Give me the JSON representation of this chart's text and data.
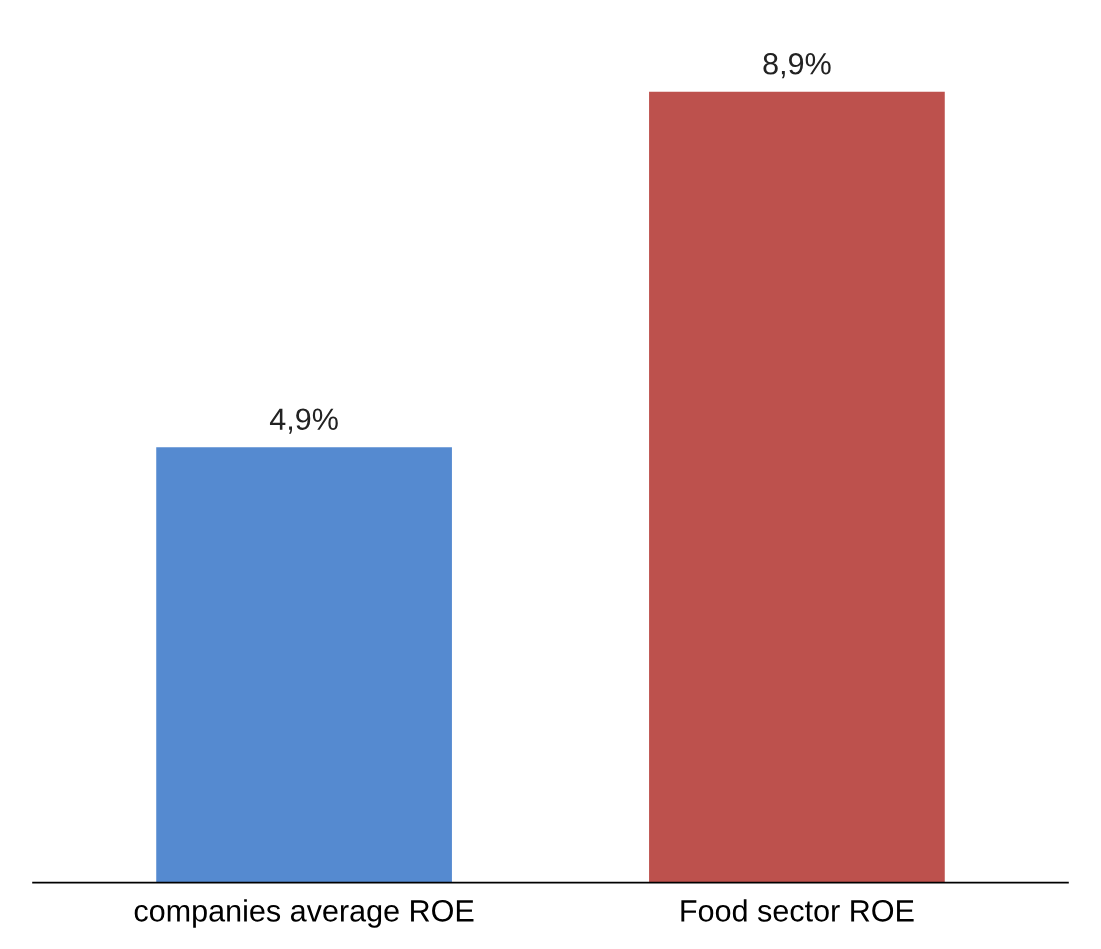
{
  "chart_data": {
    "type": "bar",
    "categories": [
      "companies average ROE",
      "Food sector ROE"
    ],
    "values": [
      4.9,
      8.9
    ],
    "colors": [
      "#558ad0",
      "#bd514d"
    ],
    "value_labels": [
      "4,9%",
      "8,9%"
    ],
    "grid": false,
    "legend": false
  }
}
